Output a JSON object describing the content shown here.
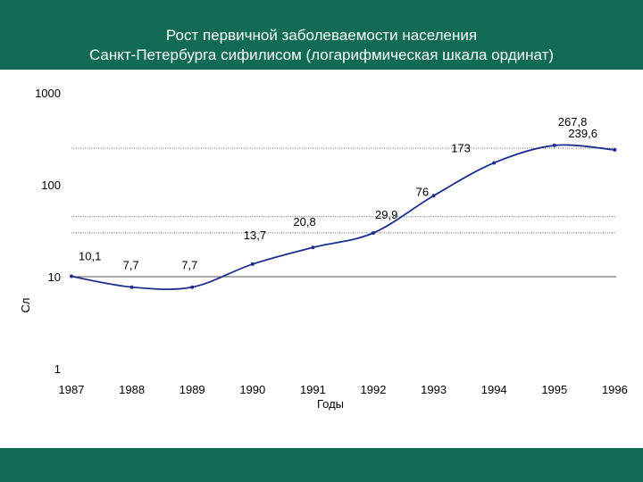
{
  "header": {
    "title_line1": "Рост первичной заболеваемости населения",
    "title_line2": "Санкт-Петербурга сифилисом (логарифмическая шкала ординат)"
  },
  "colors": {
    "band": "#0f6b54",
    "line": "#1f2f8c",
    "text": "#000000"
  },
  "chart_data": {
    "type": "line",
    "title": "Рост первичной заболеваемости населения Санкт-Петербурга сифилисом (логарифмическая шкала ординат)",
    "xlabel": "Годы",
    "ylabel": "Сл",
    "y_scale": "log",
    "ylim": [
      1,
      1000
    ],
    "y_ticks": [
      "1",
      "10",
      "100",
      "1000"
    ],
    "x_ticks": [
      "1987",
      "1988",
      "1989",
      "1990",
      "1991",
      "1992",
      "1993",
      "1994",
      "1995",
      "1996"
    ],
    "grid": true,
    "legend": "none",
    "series": [
      {
        "values": [
          {
            "x": 1987,
            "y": 10.1,
            "label": "10,1"
          },
          {
            "x": 1988,
            "y": 7.7,
            "label": "7,7"
          },
          {
            "x": 1989,
            "y": 7.7,
            "label": "7,7"
          },
          {
            "x": 1990,
            "y": 13.7,
            "label": "13,7"
          },
          {
            "x": 1991,
            "y": 20.8,
            "label": "20,8"
          },
          {
            "x": 1992,
            "y": 29.9,
            "label": "29,9"
          },
          {
            "x": 1993,
            "y": 76,
            "label": "76"
          },
          {
            "x": 1994,
            "y": 173,
            "label": "173"
          },
          {
            "x": 1995,
            "y": 267.8,
            "label": "267,8"
          },
          {
            "x": 1996,
            "y": 239.6,
            "label": "239,6"
          }
        ]
      }
    ]
  }
}
